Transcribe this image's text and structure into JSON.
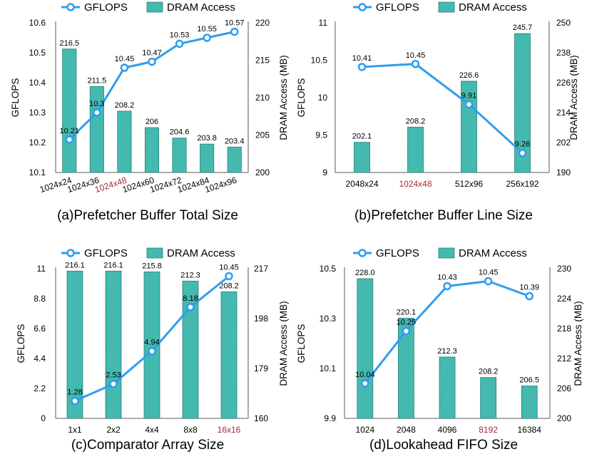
{
  "colors": {
    "bar": "#48C1B7",
    "bar_edge": "#2A7F79",
    "line": "#2E9DF0",
    "marker_fill": "#ffffff",
    "highlight_tick": "#A52A3A",
    "text": "#000000"
  },
  "legend": {
    "line_label": "GFLOPS",
    "bar_label": "DRAM Access"
  },
  "chart_data": [
    {
      "id": "a",
      "type": "bar+line",
      "title": "(a)Prefetcher Buffer Total Size",
      "categories": [
        "1024x24",
        "1024x36",
        "1024x48",
        "1024x60",
        "1024x72",
        "1024x84",
        "1024x96"
      ],
      "highlight_category": "1024x48",
      "tick_rotation": "diagonal",
      "series": [
        {
          "name": "DRAM Access",
          "kind": "bar",
          "axis": "right",
          "values": [
            216.5,
            211.5,
            208.2,
            206,
            204.6,
            203.8,
            203.4
          ],
          "labels": [
            "216.5",
            "211.5",
            "208.2",
            "206",
            "204.6",
            "203.8",
            "203.4"
          ]
        },
        {
          "name": "GFLOPS",
          "kind": "line",
          "axis": "left",
          "values": [
            10.21,
            10.3,
            10.45,
            10.47,
            10.53,
            10.55,
            10.57
          ],
          "labels": [
            "10.21",
            "10.3",
            "10.45",
            "10.47",
            "10.53",
            "10.55",
            "10.57"
          ]
        }
      ],
      "ylabel_left": "GFLOPS",
      "ylabel_right": "DRAM Access (MB)",
      "ylim_left": [
        10.1,
        10.6
      ],
      "yticks_left": [
        "10.1",
        "10.2",
        "10.3",
        "10.4",
        "10.5",
        "10.6"
      ],
      "ylim_right": [
        200,
        220
      ],
      "yticks_right": [
        "200",
        "205",
        "210",
        "215",
        "220"
      ]
    },
    {
      "id": "b",
      "type": "bar+line",
      "title": "(b)Prefetcher Buffer Line Size",
      "categories": [
        "2048x24",
        "1024x48",
        "512x96",
        "256x192"
      ],
      "highlight_category": "1024x48",
      "tick_rotation": "none",
      "series": [
        {
          "name": "DRAM Access",
          "kind": "bar",
          "axis": "right",
          "values": [
            202.1,
            208.2,
            226.6,
            245.7
          ],
          "labels": [
            "202.1",
            "208.2",
            "226.6",
            "245.7"
          ]
        },
        {
          "name": "GFLOPS",
          "kind": "line",
          "axis": "left",
          "values": [
            10.41,
            10.45,
            9.91,
            9.26
          ],
          "labels": [
            "10.41",
            "10.45",
            "9.91",
            "9.26"
          ]
        }
      ],
      "ylabel_left": "GFLOPS",
      "ylabel_right": "DRAM Access (MB)",
      "ylim_left": [
        9,
        11
      ],
      "yticks_left": [
        "9",
        "9.5",
        "10",
        "10.5",
        "11"
      ],
      "ylim_right": [
        190,
        250
      ],
      "yticks_right": [
        "190",
        "202",
        "214",
        "226",
        "238",
        "250"
      ]
    },
    {
      "id": "c",
      "type": "bar+line",
      "title": "(c)Comparator Array Size",
      "categories": [
        "1x1",
        "2x2",
        "4x4",
        "8x8",
        "16x16"
      ],
      "highlight_category": "16x16",
      "tick_rotation": "none",
      "series": [
        {
          "name": "DRAM Access",
          "kind": "bar",
          "axis": "right",
          "values": [
            216.1,
            216.1,
            215.8,
            212.3,
            208.2
          ],
          "labels": [
            "216.1",
            "216.1",
            "215.8",
            "212.3",
            "208.2"
          ]
        },
        {
          "name": "GFLOPS",
          "kind": "line",
          "axis": "left",
          "values": [
            1.28,
            2.53,
            4.94,
            8.18,
            10.45
          ],
          "labels": [
            "1.28",
            "2.53",
            "4.94",
            "8.18",
            "10.45"
          ]
        }
      ],
      "ylabel_left": "GFLOPS",
      "ylabel_right": "DRAM Access (MB)",
      "ylim_left": [
        0,
        11
      ],
      "yticks_left": [
        "0",
        "2.2",
        "4.4",
        "6.6",
        "8.8",
        "11"
      ],
      "ylim_right": [
        160,
        217
      ],
      "yticks_right": [
        "160",
        "179",
        "198",
        "217"
      ]
    },
    {
      "id": "d",
      "type": "bar+line",
      "title": "(d)Lookahead FIFO Size",
      "categories": [
        "1024",
        "2048",
        "4096",
        "8192",
        "16384"
      ],
      "highlight_category": "8192",
      "tick_rotation": "none",
      "series": [
        {
          "name": "DRAM Access",
          "kind": "bar",
          "axis": "right",
          "values": [
            228.0,
            220.1,
            212.3,
            208.2,
            206.5
          ],
          "labels": [
            "228.0",
            "220.1",
            "212.3",
            "208.2",
            "206.5"
          ]
        },
        {
          "name": "GFLOPS",
          "kind": "line",
          "axis": "left",
          "values": [
            10.04,
            10.25,
            10.43,
            10.45,
            10.39
          ],
          "labels": [
            "10.04",
            "10.25",
            "10.43",
            "10.45",
            "10.39"
          ]
        }
      ],
      "ylabel_left": "GFLOPS",
      "ylabel_right": "DRAM Access (MB)",
      "ylim_left": [
        9.9,
        10.5
      ],
      "yticks_left": [
        "9.9",
        "10.1",
        "10.3",
        "10.5"
      ],
      "ylim_right": [
        200,
        230
      ],
      "yticks_right": [
        "200",
        "206",
        "212",
        "218",
        "224",
        "230"
      ]
    }
  ]
}
